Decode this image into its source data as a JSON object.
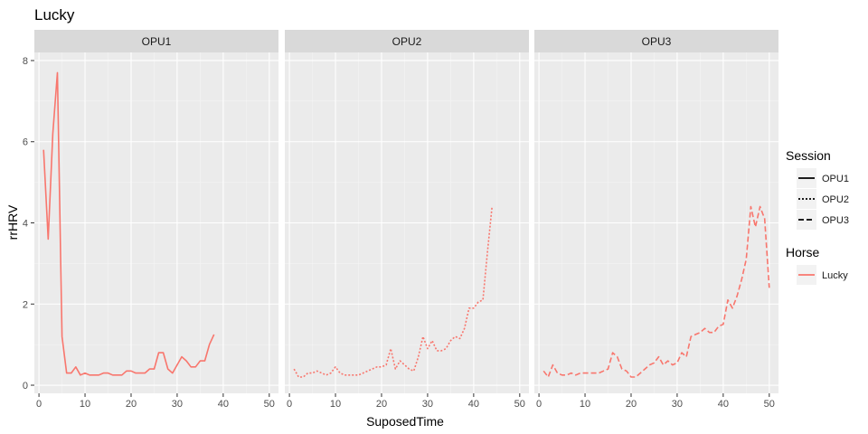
{
  "chart_data": {
    "type": "line",
    "title": "Lucky",
    "xlabel": "SuposedTime",
    "ylabel": "rrHRV",
    "xlim": [
      -1,
      52
    ],
    "ylim": [
      -0.2,
      8.2
    ],
    "x_ticks": [
      0,
      10,
      20,
      30,
      40,
      50
    ],
    "y_ticks": [
      0,
      2,
      4,
      6,
      8
    ],
    "grid": true,
    "color": "#F8766D",
    "panels": [
      {
        "name": "OPU1",
        "linetype": "solid",
        "x": [
          1,
          2,
          3,
          4,
          5,
          6,
          7,
          8,
          9,
          10,
          11,
          12,
          13,
          14,
          15,
          16,
          17,
          18,
          19,
          20,
          21,
          22,
          23,
          24,
          25,
          26,
          27,
          28,
          29,
          30,
          31,
          32,
          33,
          34,
          35,
          36,
          37,
          38
        ],
        "y": [
          5.8,
          3.6,
          6.2,
          7.7,
          1.2,
          0.3,
          0.3,
          0.45,
          0.25,
          0.3,
          0.25,
          0.25,
          0.25,
          0.3,
          0.3,
          0.25,
          0.25,
          0.25,
          0.35,
          0.35,
          0.3,
          0.3,
          0.3,
          0.4,
          0.4,
          0.8,
          0.8,
          0.4,
          0.3,
          0.5,
          0.7,
          0.6,
          0.45,
          0.45,
          0.6,
          0.6,
          1.0,
          1.25
        ]
      },
      {
        "name": "OPU2",
        "linetype": "dotted",
        "x": [
          1,
          2,
          3,
          4,
          5,
          6,
          7,
          8,
          9,
          10,
          11,
          12,
          13,
          14,
          15,
          16,
          17,
          18,
          19,
          20,
          21,
          22,
          23,
          24,
          25,
          26,
          27,
          28,
          29,
          30,
          31,
          32,
          33,
          34,
          35,
          36,
          37,
          38,
          39,
          40,
          41,
          42,
          43,
          44
        ],
        "y": [
          0.4,
          0.2,
          0.2,
          0.3,
          0.3,
          0.35,
          0.3,
          0.25,
          0.3,
          0.45,
          0.3,
          0.25,
          0.25,
          0.25,
          0.25,
          0.3,
          0.35,
          0.4,
          0.45,
          0.45,
          0.5,
          0.9,
          0.4,
          0.6,
          0.5,
          0.4,
          0.35,
          0.7,
          1.2,
          0.9,
          1.1,
          0.85,
          0.85,
          0.9,
          1.1,
          1.2,
          1.15,
          1.4,
          1.9,
          1.9,
          2.05,
          2.1,
          3.3,
          4.4
        ]
      },
      {
        "name": "OPU3",
        "linetype": "dashed",
        "x": [
          1,
          2,
          3,
          4,
          5,
          6,
          7,
          8,
          9,
          10,
          11,
          12,
          13,
          14,
          15,
          16,
          17,
          18,
          19,
          20,
          21,
          22,
          23,
          24,
          25,
          26,
          27,
          28,
          29,
          30,
          31,
          32,
          33,
          34,
          35,
          36,
          37,
          38,
          39,
          40,
          41,
          42,
          43,
          44,
          45,
          46,
          47,
          48,
          49,
          50
        ],
        "y": [
          0.35,
          0.2,
          0.5,
          0.3,
          0.25,
          0.25,
          0.3,
          0.25,
          0.3,
          0.3,
          0.3,
          0.3,
          0.3,
          0.35,
          0.4,
          0.8,
          0.7,
          0.4,
          0.35,
          0.2,
          0.2,
          0.3,
          0.4,
          0.5,
          0.55,
          0.7,
          0.5,
          0.6,
          0.5,
          0.55,
          0.8,
          0.7,
          1.2,
          1.25,
          1.3,
          1.4,
          1.3,
          1.3,
          1.45,
          1.5,
          2.1,
          1.9,
          2.2,
          2.6,
          3.1,
          4.4,
          3.9,
          4.4,
          4.1,
          2.4
        ]
      }
    ],
    "legend": {
      "position": "right",
      "groups": [
        {
          "title": "Session",
          "entries": [
            {
              "label": "OPU1",
              "linetype": "solid"
            },
            {
              "label": "OPU2",
              "linetype": "dotted"
            },
            {
              "label": "OPU3",
              "linetype": "dashed"
            }
          ]
        },
        {
          "title": "Horse",
          "entries": [
            {
              "label": "Lucky",
              "linetype": "solid",
              "color": "#F8766D"
            }
          ]
        }
      ]
    }
  }
}
